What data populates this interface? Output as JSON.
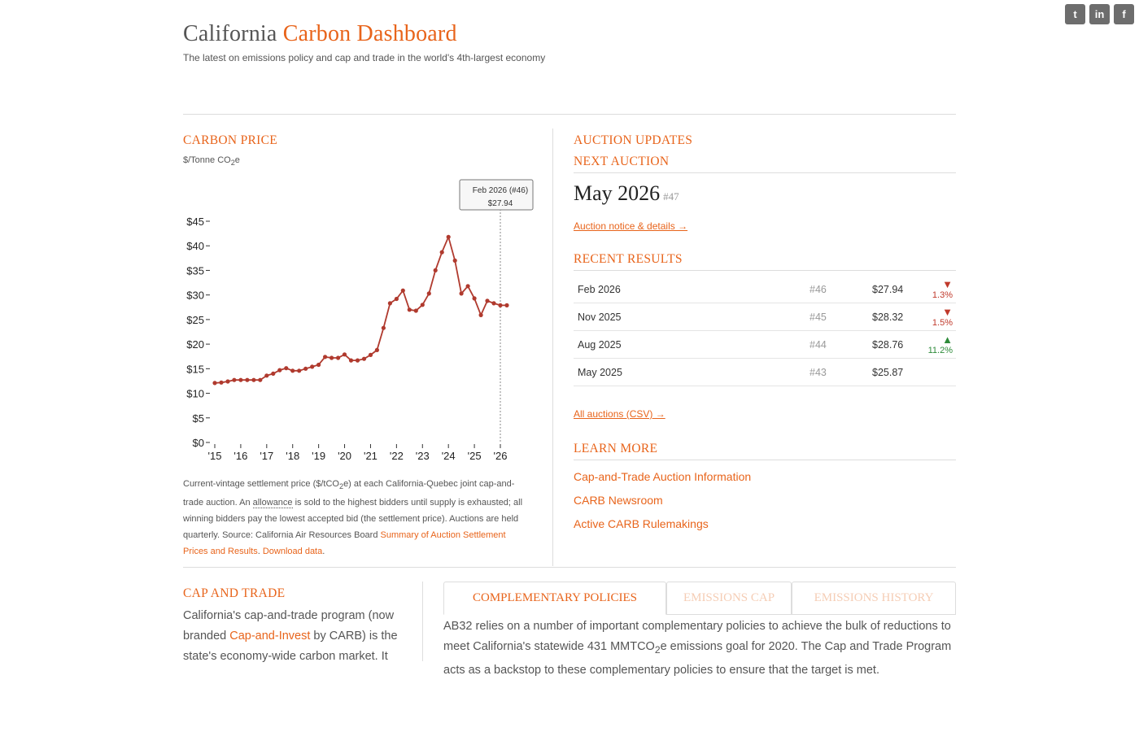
{
  "header": {
    "title_prefix": "California",
    "title_accent": "Carbon Dashboard",
    "subtitle": "The latest on emissions policy and cap and trade in the world's 4th-largest economy"
  },
  "social": [
    {
      "label": "t",
      "icon": "twitter-icon"
    },
    {
      "label": "in",
      "icon": "linkedin-icon"
    },
    {
      "label": "f",
      "icon": "facebook-icon"
    }
  ],
  "carbon_price": {
    "heading": "CARBON PRICE",
    "units": "$/Tonne CO",
    "units_sub": "2",
    "units_tail": "e",
    "tooltip_date": "Feb 2026 (#46)",
    "tooltip_value": "$27.94",
    "caption": {
      "p1": "Current-vintage settlement price ($/tCO",
      "p1_sub": "2",
      "p2": "e) at each California-Quebec joint cap-and-trade auction. An ",
      "p3": "allowance",
      "p4": " is sold to the highest bidders until supply is exhausted; all winning bidders pay the lowest accepted bid (the settlement price). Auctions are held quarterly. Source: California Air Resources Board ",
      "link1": "Summary of Auction Settlement Prices and Results",
      "p5": ". ",
      "link2": "Download data",
      "p6": "."
    }
  },
  "chart_data": {
    "type": "line",
    "color": "#b03a2e",
    "x_ticks": [
      "'15",
      "'16",
      "'17",
      "'18",
      "'19",
      "'20",
      "'21",
      "'22",
      "'23",
      "'24",
      "'25",
      "'26"
    ],
    "y_ticks": [
      "$0",
      "$5",
      "$10",
      "$15",
      "$20",
      "$25",
      "$30",
      "$35",
      "$40",
      "$45"
    ],
    "ylim": [
      0,
      45
    ],
    "xlim": [
      2015,
      2026
    ],
    "x": [
      2015.0,
      2015.25,
      2015.5,
      2015.75,
      2016.0,
      2016.25,
      2016.5,
      2016.75,
      2017.0,
      2017.25,
      2017.5,
      2017.75,
      2018.0,
      2018.25,
      2018.5,
      2018.75,
      2019.0,
      2019.25,
      2019.5,
      2019.75,
      2020.0,
      2020.25,
      2020.5,
      2020.75,
      2021.0,
      2021.25,
      2021.5,
      2021.75,
      2022.0,
      2022.25,
      2022.5,
      2022.75,
      2023.0,
      2023.25,
      2023.5,
      2023.75,
      2024.0,
      2024.25,
      2024.5,
      2024.75,
      2025.0,
      2025.25,
      2025.5,
      2025.75,
      2026.0,
      2026.25
    ],
    "values": [
      12.1,
      12.2,
      12.4,
      12.7,
      12.7,
      12.7,
      12.7,
      12.7,
      13.6,
      14.0,
      14.7,
      15.1,
      14.6,
      14.6,
      15.0,
      15.4,
      15.8,
      17.4,
      17.2,
      17.2,
      17.9,
      16.7,
      16.7,
      17.0,
      17.8,
      18.8,
      23.3,
      28.3,
      29.2,
      30.9,
      27.0,
      26.8,
      28.0,
      30.3,
      35.0,
      38.7,
      41.8,
      37.0,
      30.3,
      31.8,
      29.3,
      25.9,
      28.8,
      28.3,
      27.9,
      27.9
    ]
  },
  "auction": {
    "heading": "AUCTION UPDATES",
    "next_heading": "NEXT AUCTION",
    "next_month": "May 2026",
    "next_num": "#47",
    "notice_link": "Auction notice & details →",
    "recent_heading": "RECENT RESULTS",
    "results": [
      {
        "date": "Feb 2026",
        "num": "#46",
        "price": "$27.94",
        "arrow": "▼",
        "change": "1.3%",
        "dir": "down"
      },
      {
        "date": "Nov 2025",
        "num": "#45",
        "price": "$28.32",
        "arrow": "▼",
        "change": "1.5%",
        "dir": "down"
      },
      {
        "date": "Aug 2025",
        "num": "#44",
        "price": "$28.76",
        "arrow": "▲",
        "change": "11.2%",
        "dir": "up"
      },
      {
        "date": "May 2025",
        "num": "#43",
        "price": "$25.87",
        "arrow": "",
        "change": "",
        "dir": ""
      }
    ],
    "csv_link": "All auctions (CSV) →"
  },
  "learn_more": {
    "heading": "LEARN MORE",
    "links": [
      "Cap-and-Trade Auction Information",
      "CARB Newsroom",
      "Active CARB Rulemakings"
    ]
  },
  "cap_trade": {
    "heading": "CAP AND TRADE",
    "t1": "California's cap-and-trade program (now branded ",
    "link": "Cap-and-Invest",
    "t2": " by CARB) is the state's economy-wide carbon market. It"
  },
  "tabs": {
    "items": [
      "COMPLEMENTARY POLICIES",
      "EMISSIONS CAP",
      "EMISSIONS HISTORY"
    ],
    "text1": "AB32 relies on a number of important complementary policies to achieve the bulk of reductions to meet California's statewide 431 MMTCO",
    "text_sub": "2",
    "text2": "e emissions goal for 2020. The Cap and Trade Program acts as a backstop to these complementary policies to ensure that the target is met."
  }
}
